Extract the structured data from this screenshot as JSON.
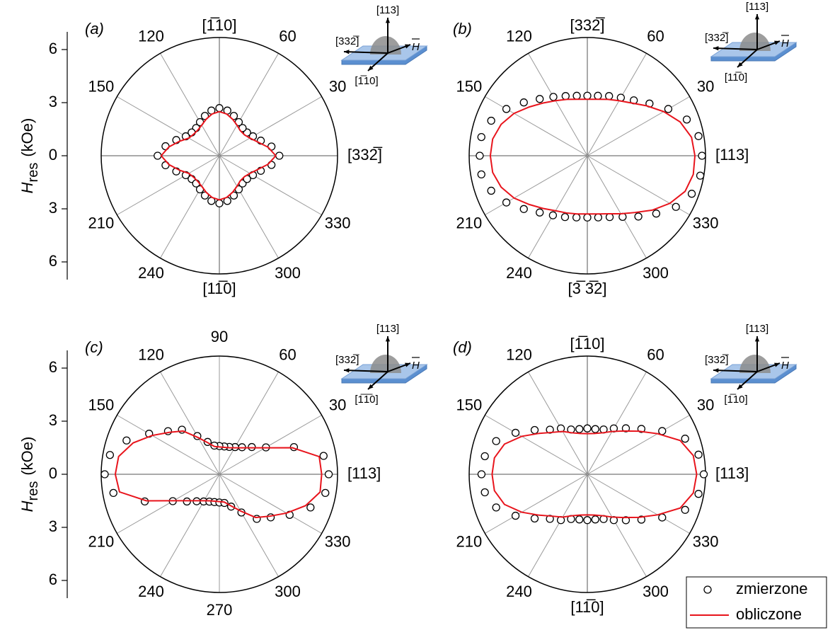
{
  "chart_data": [
    {
      "type": "polar",
      "label": "(a)",
      "rlim": [
        0,
        6.7
      ],
      "ylim": [
        -7,
        7
      ],
      "yticks": [
        {
          "value": 6,
          "label": "6"
        },
        3,
        0,
        {
          "value": -3,
          "label": "3"
        },
        {
          "value": -6,
          "label": "6"
        }
      ],
      "ylabel": {
        "main": "H",
        "sub": "res",
        "unit": "(kOe)"
      },
      "thetaticks": [
        30,
        60,
        120,
        150,
        210,
        240,
        300,
        330
      ],
      "directions": {
        "top": "[1̅10]",
        "right": "[332̅]",
        "bottom": "[11̅0]"
      },
      "inset": {
        "up": "[113]",
        "left": "[332̅]",
        "down": "[1̅10]",
        "field": "H"
      },
      "theta": [
        0,
        10,
        20,
        30,
        40,
        50,
        60,
        70,
        80,
        90,
        100,
        110,
        120,
        130,
        140,
        150,
        160,
        170,
        180,
        190,
        200,
        210,
        220,
        230,
        240,
        250,
        260,
        270,
        280,
        290,
        300,
        310,
        320,
        330,
        340,
        350
      ],
      "series": [
        {
          "name": "zmierzone",
          "color": "#000000",
          "marker": "circle",
          "values": [
            3.4,
            3.0,
            2.5,
            2.2,
            2.05,
            2.05,
            2.2,
            2.4,
            2.6,
            2.7,
            2.6,
            2.4,
            2.2,
            2.05,
            2.05,
            2.2,
            2.6,
            3.1,
            3.5,
            3.1,
            2.6,
            2.2,
            2.05,
            2.05,
            2.2,
            2.4,
            2.6,
            2.7,
            2.6,
            2.4,
            2.2,
            2.05,
            2.05,
            2.2,
            2.5,
            3.0
          ]
        },
        {
          "name": "obliczone",
          "color": "#e8141c",
          "values": [
            3.2,
            2.8,
            2.3,
            2.0,
            1.85,
            1.85,
            2.0,
            2.2,
            2.4,
            2.5,
            2.4,
            2.2,
            2.0,
            1.9,
            1.9,
            2.0,
            2.4,
            2.9,
            3.3,
            2.9,
            2.4,
            2.0,
            1.9,
            1.9,
            2.0,
            2.2,
            2.4,
            2.5,
            2.4,
            2.2,
            2.0,
            1.85,
            1.85,
            2.0,
            2.3,
            2.8
          ]
        }
      ]
    },
    {
      "type": "polar",
      "label": "(b)",
      "rlim": [
        0,
        6.7
      ],
      "thetaticks": [
        30,
        60,
        120,
        150,
        210,
        240,
        300,
        330
      ],
      "directions": {
        "top": "[332̅]",
        "right": "[113]",
        "bottom": "[3̅ 3̅2]"
      },
      "inset": {
        "up": "[113]",
        "left": "[332̅]",
        "down": "[11̅0]",
        "field": "H"
      },
      "theta": [
        0,
        10,
        20,
        30,
        40,
        50,
        60,
        70,
        80,
        90,
        100,
        110,
        120,
        130,
        140,
        150,
        160,
        170,
        180,
        190,
        200,
        210,
        220,
        230,
        240,
        250,
        260,
        270,
        280,
        290,
        300,
        310,
        320,
        330,
        340,
        350
      ],
      "series": [
        {
          "name": "zmierzone",
          "color": "#000000",
          "marker": "circle",
          "values": [
            6.5,
            6.4,
            6.0,
            5.3,
            4.6,
            4.1,
            3.8,
            3.6,
            3.45,
            3.4,
            3.45,
            3.6,
            3.85,
            4.2,
            4.7,
            5.3,
            5.8,
            6.1,
            6.1,
            6.1,
            5.8,
            5.3,
            4.7,
            4.2,
            3.9,
            3.7,
            3.55,
            3.5,
            3.55,
            3.7,
            4.0,
            4.5,
            5.1,
            5.8,
            6.3,
            6.5
          ]
        },
        {
          "name": "obliczone",
          "color": "#e8141c",
          "values": [
            6.1,
            6.0,
            5.6,
            5.0,
            4.4,
            3.9,
            3.6,
            3.4,
            3.25,
            3.2,
            3.25,
            3.4,
            3.6,
            3.9,
            4.3,
            4.8,
            5.2,
            5.45,
            5.5,
            5.45,
            5.2,
            4.8,
            4.3,
            3.9,
            3.6,
            3.45,
            3.35,
            3.3,
            3.35,
            3.5,
            3.8,
            4.2,
            4.8,
            5.4,
            5.9,
            6.1
          ]
        }
      ]
    },
    {
      "type": "polar",
      "label": "(c)",
      "rlim": [
        0,
        6.7
      ],
      "ylim": [
        -7,
        7
      ],
      "yticks": [
        {
          "value": 6,
          "label": "6"
        },
        3,
        0,
        {
          "value": -3,
          "label": "3"
        },
        {
          "value": -6,
          "label": "6"
        }
      ],
      "ylabel": {
        "main": "H",
        "sub": "res",
        "unit": "(kOe)"
      },
      "thetaticks": [
        30,
        60,
        90,
        120,
        150,
        210,
        240,
        270,
        300,
        330
      ],
      "directions": {
        "right": "[113]"
      },
      "inset": {
        "up": "[113]",
        "left": "[332̅]",
        "down": "[1̅1̅0]",
        "field": "H"
      },
      "theta": [
        0,
        10,
        20,
        30,
        40,
        50,
        60,
        70,
        80,
        90,
        100,
        110,
        120,
        130,
        140,
        150,
        160,
        170,
        180,
        190,
        200,
        210,
        220,
        230,
        240,
        250,
        260,
        270,
        280,
        290,
        300,
        310,
        320,
        330,
        340,
        350
      ],
      "series": [
        {
          "name": "zmierzone",
          "color": "#000000",
          "marker": "circle",
          "values": [
            6.2,
            6.0,
            4.5,
            3.05,
            2.4,
            2.0,
            1.78,
            1.65,
            1.6,
            1.6,
            1.65,
            1.95,
            2.5,
            3.3,
            3.8,
            4.6,
            5.6,
            6.3,
            6.5,
            6.1,
            4.5,
            3.05,
            2.4,
            2.0,
            1.78,
            1.65,
            1.6,
            1.6,
            1.65,
            1.95,
            2.5,
            3.3,
            3.8,
            4.6,
            5.5,
            6.1
          ]
        },
        {
          "name": "obliczone",
          "color": "#e8141c",
          "values": [
            5.8,
            5.75,
            4.4,
            3.0,
            2.33,
            1.96,
            1.73,
            1.6,
            1.55,
            1.55,
            1.6,
            1.9,
            2.4,
            3.2,
            3.7,
            4.4,
            5.2,
            5.8,
            5.9,
            5.75,
            4.4,
            3.0,
            2.33,
            1.96,
            1.73,
            1.6,
            1.55,
            1.55,
            1.6,
            1.9,
            2.4,
            3.2,
            3.7,
            4.4,
            5.2,
            5.8
          ]
        }
      ]
    },
    {
      "type": "polar",
      "label": "(d)",
      "rlim": [
        0,
        6.7
      ],
      "thetaticks": [
        30,
        60,
        120,
        150,
        210,
        240,
        300,
        330
      ],
      "directions": {
        "top": "[1̅10]",
        "right": "[113]",
        "bottom": "[11̅0]"
      },
      "inset": {
        "up": "[113]",
        "left": "[332̅]",
        "down": "[1̅10]",
        "field": "H"
      },
      "legend": "lower right",
      "theta": [
        0,
        10,
        20,
        30,
        40,
        50,
        60,
        70,
        80,
        90,
        100,
        110,
        120,
        130,
        140,
        150,
        160,
        170,
        180,
        190,
        200,
        210,
        220,
        230,
        240,
        250,
        260,
        270,
        280,
        290,
        300,
        310,
        320,
        330,
        340,
        350
      ],
      "series": [
        {
          "name": "zmierzone",
          "color": "#000000",
          "marker": "circle",
          "values": [
            6.6,
            6.4,
            5.9,
            4.9,
            4.0,
            3.4,
            3.0,
            2.7,
            2.6,
            2.6,
            2.6,
            2.7,
            3.0,
            3.3,
            3.9,
            4.7,
            5.5,
            5.9,
            6.0,
            5.9,
            5.5,
            4.7,
            3.9,
            3.3,
            3.0,
            2.7,
            2.6,
            2.6,
            2.6,
            2.7,
            3.0,
            3.4,
            4.0,
            4.9,
            5.9,
            6.4
          ]
        },
        {
          "name": "obliczone",
          "color": "#e8141c",
          "values": [
            6.2,
            6.1,
            5.6,
            4.6,
            3.8,
            3.2,
            2.8,
            2.5,
            2.35,
            2.3,
            2.35,
            2.5,
            2.8,
            3.1,
            3.6,
            4.3,
            5.0,
            5.35,
            5.4,
            5.35,
            5.0,
            4.3,
            3.6,
            3.1,
            2.8,
            2.5,
            2.35,
            2.3,
            2.35,
            2.5,
            2.8,
            3.2,
            3.8,
            4.6,
            5.6,
            6.1
          ]
        }
      ]
    }
  ]
}
